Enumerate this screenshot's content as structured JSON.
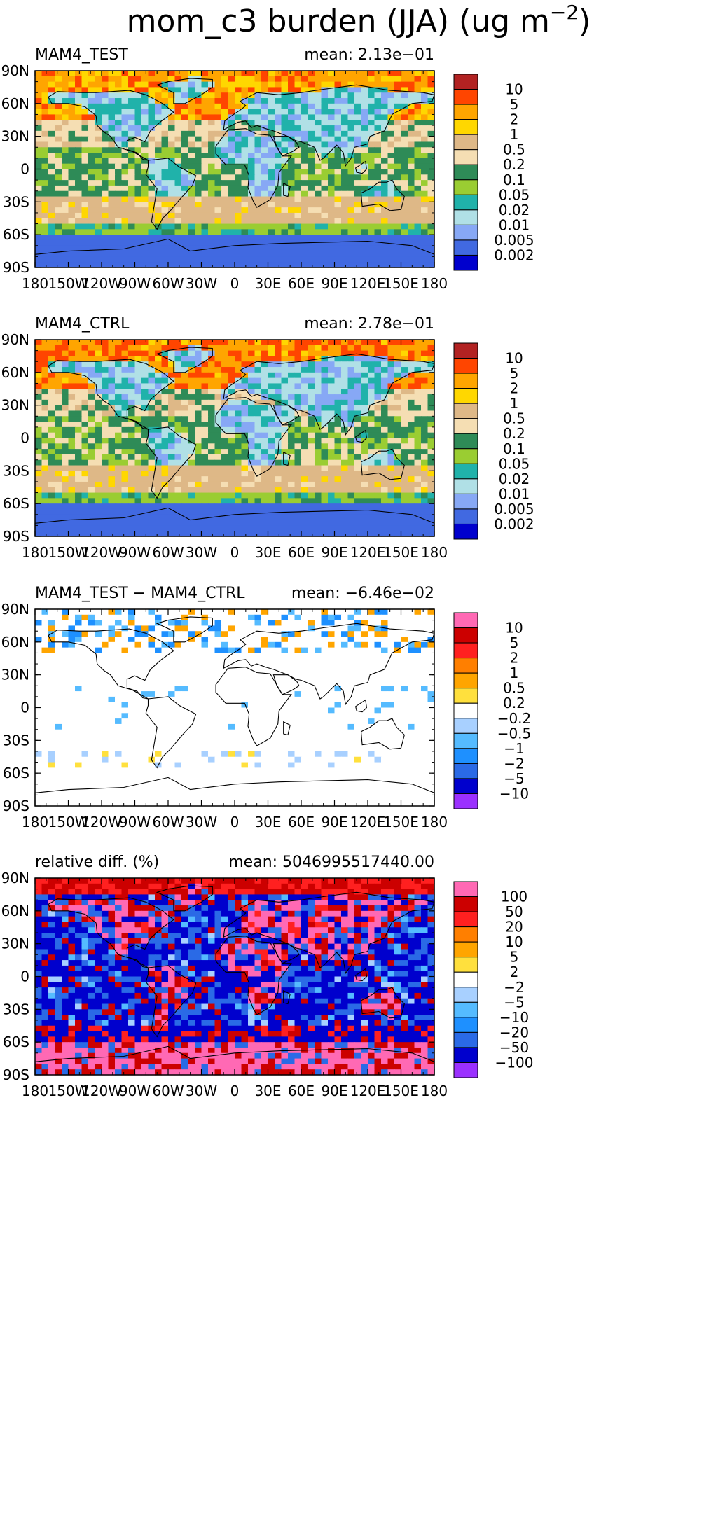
{
  "title_main": "mom_c3 burden (JJA) (ug m",
  "title_exp": "−2",
  "title_close": ")",
  "colors": {
    "land_outline": "#000000",
    "frame": "#000000"
  },
  "chart_data": [
    {
      "type": "heatmap",
      "label": "MAM4_TEST",
      "mean_text": "mean: 2.13e−01",
      "x_ticks": [
        "180",
        "150W",
        "120W",
        "90W",
        "60W",
        "30W",
        "0",
        "30E",
        "60E",
        "90E",
        "120E",
        "150E",
        "180"
      ],
      "y_ticks": [
        "90N",
        "60N",
        "30N",
        "0",
        "30S",
        "60S",
        "90S"
      ],
      "xlim": [
        -180,
        180
      ],
      "ylim": [
        -90,
        90
      ],
      "colorbar": {
        "labels": [
          "10",
          "5",
          "2",
          "1",
          "0.5",
          "0.2",
          "0.1",
          "0.05",
          "0.02",
          "0.01",
          "0.005",
          "0.002"
        ],
        "colors": [
          "#b22222",
          "#ff4500",
          "#ffa500",
          "#ffd700",
          "#deb887",
          "#f5deb3",
          "#2e8b57",
          "#9acd32",
          "#20b2aa",
          "#b0e0e6",
          "#87a8f5",
          "#4169e1",
          "#0000cd"
        ]
      }
    },
    {
      "type": "heatmap",
      "label": "MAM4_CTRL",
      "mean_text": "mean: 2.78e−01",
      "x_ticks": [
        "180",
        "150W",
        "120W",
        "90W",
        "60W",
        "30W",
        "0",
        "30E",
        "60E",
        "90E",
        "120E",
        "150E",
        "180"
      ],
      "y_ticks": [
        "90N",
        "60N",
        "30N",
        "0",
        "30S",
        "60S",
        "90S"
      ],
      "xlim": [
        -180,
        180
      ],
      "ylim": [
        -90,
        90
      ],
      "colorbar": {
        "labels": [
          "10",
          "5",
          "2",
          "1",
          "0.5",
          "0.2",
          "0.1",
          "0.05",
          "0.02",
          "0.01",
          "0.005",
          "0.002"
        ],
        "colors": [
          "#b22222",
          "#ff4500",
          "#ffa500",
          "#ffd700",
          "#deb887",
          "#f5deb3",
          "#2e8b57",
          "#9acd32",
          "#20b2aa",
          "#b0e0e6",
          "#87a8f5",
          "#4169e1",
          "#0000cd"
        ]
      }
    },
    {
      "type": "heatmap",
      "label": "MAM4_TEST − MAM4_CTRL",
      "mean_text": "mean: −6.46e−02",
      "x_ticks": [
        "180",
        "150W",
        "120W",
        "90W",
        "60W",
        "30W",
        "0",
        "30E",
        "60E",
        "90E",
        "120E",
        "150E",
        "180"
      ],
      "y_ticks": [
        "90N",
        "60N",
        "30N",
        "0",
        "30S",
        "60S",
        "90S"
      ],
      "xlim": [
        -180,
        180
      ],
      "ylim": [
        -90,
        90
      ],
      "colorbar": {
        "labels": [
          "10",
          "5",
          "2",
          "1",
          "0.5",
          "0.2",
          "−0.2",
          "−0.5",
          "−1",
          "−2",
          "−5",
          "−10"
        ],
        "colors": [
          "#ff69b4",
          "#cc0000",
          "#ff2020",
          "#ff7f00",
          "#ffa500",
          "#ffe03d",
          "#ffffff",
          "#a8d0ff",
          "#55bbff",
          "#1e90ff",
          "#2a6ae6",
          "#0000cd",
          "#9b30ff"
        ]
      }
    },
    {
      "type": "heatmap",
      "label": "relative diff. (%)",
      "mean_text": "mean: 5046995517440.00",
      "x_ticks": [
        "180",
        "150W",
        "120W",
        "90W",
        "60W",
        "30W",
        "0",
        "30E",
        "60E",
        "90E",
        "120E",
        "150E",
        "180"
      ],
      "y_ticks": [
        "90N",
        "60N",
        "30N",
        "0",
        "30S",
        "60S",
        "90S"
      ],
      "xlim": [
        -180,
        180
      ],
      "ylim": [
        -90,
        90
      ],
      "colorbar": {
        "labels": [
          "100",
          "50",
          "20",
          "10",
          "5",
          "2",
          "−2",
          "−5",
          "−10",
          "−20",
          "−50",
          "−100"
        ],
        "colors": [
          "#ff69b4",
          "#cc0000",
          "#ff2020",
          "#ff7f00",
          "#ffa500",
          "#ffe03d",
          "#ffffff",
          "#a8d0ff",
          "#55bbff",
          "#1e90ff",
          "#2a6ae6",
          "#0000cd",
          "#9b30ff"
        ]
      }
    }
  ]
}
